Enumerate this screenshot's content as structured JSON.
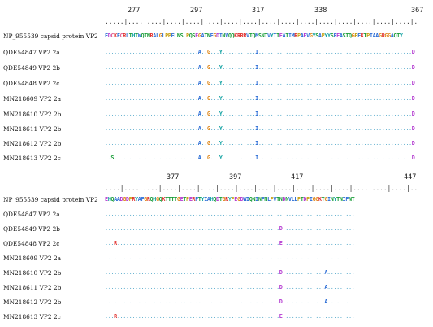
{
  "colors": {
    "dot": "#4fa6c9"
  },
  "blocks": [
    {
      "position_numbers": [
        "277",
        "297",
        "317",
        "338",
        "367"
      ],
      "ruler": ".....|....|....|....|....|....|....|....|....|....|....|....|....|....|....|....|.",
      "rows": [
        {
          "label": "NP_955539 capsid protein VP2",
          "sequence": "FDCKFCRLTHTWQTNRALGLPPFLNSLPQSEGATNFGDINVQQKRRRVTQMSNTVYITEATIMRPAEVGYSAPYYSFEASTQGPFKTPIAAGRGGAQTY"
        },
        {
          "label": "QDE54847 VP2 2a",
          "sequence": "...............................A..G...Y...........I...................................................D"
        },
        {
          "label": "QDE54849 VP2 2b",
          "sequence": "...............................A..G...Y...........I...................................................D"
        },
        {
          "label": "QDE54848 VP2 2c",
          "sequence": "...............................A..G...Y...........I...................................................D"
        },
        {
          "label": "MN218609 VP2 2a",
          "sequence": "...............................A..G...Y...........I...................................................D"
        },
        {
          "label": "MN218610 VP2 2b",
          "sequence": "...............................A..G...Y...........I...................................................D"
        },
        {
          "label": "MN218611 VP2 2b",
          "sequence": "...............................A..G...Y...........I...................................................D"
        },
        {
          "label": "MN218612 VP2 2b",
          "sequence": "...............................A..G...Y...........I...................................................D"
        },
        {
          "label": "MN218613 VP2 2c",
          "sequence": "..S............................A..G...Y...........I...................................................D"
        }
      ]
    },
    {
      "position_numbers": [
        "377",
        "397",
        "417",
        "447"
      ],
      "ruler": "....|....|....|....|....|....|....|....|....|....|....|....|....|....|....|....|..",
      "rows": [
        {
          "label": "NP_955539 capsid protein VP2",
          "sequence": "EHQAADGDPRYAFGRQHGQKTTTTGETPERFTYIAHQDTGRYPEGDWIQNINFNLPVTNDNVLLPTDPIGGKTGINYTNIFNT"
        },
        {
          "label": "QDE54847 VP2 2a",
          "sequence": "..................................................................................."
        },
        {
          "label": "QDE54849 VP2 2b",
          "sequence": "..........................................................D........................"
        },
        {
          "label": "QDE54848 VP2 2c",
          "sequence": "...R......................................................E........................"
        },
        {
          "label": "MN218609 VP2 2a",
          "sequence": "..................................................................................."
        },
        {
          "label": "MN218610 VP2 2b",
          "sequence": "..........................................................D..............A........."
        },
        {
          "label": "MN218611 VP2 2b",
          "sequence": "..........................................................D..............A........."
        },
        {
          "label": "MN218612 VP2 2b",
          "sequence": "..........................................................D..............A........."
        },
        {
          "label": "MN218613 VP2 2c",
          "sequence": "...R......................................................E........................"
        }
      ]
    }
  ]
}
